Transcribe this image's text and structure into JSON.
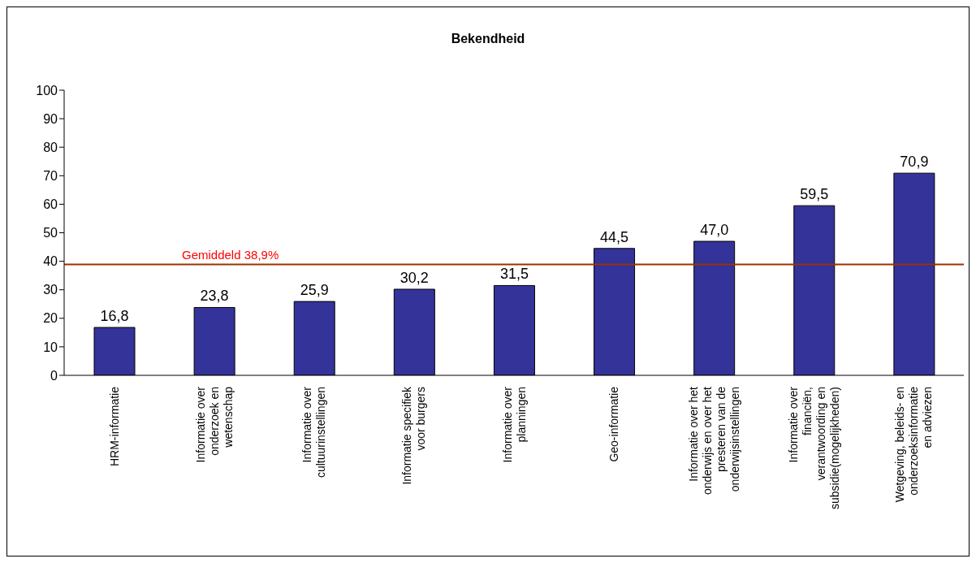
{
  "chart_data": {
    "type": "bar",
    "title": "Bekendheid",
    "categories": [
      "HRM-informatie",
      "Informatie over onderzoek en wetenschap",
      "Informatie over cultuurinstellingen",
      "Informatie specifiek voor burgers",
      "Informatie over planningen",
      "Geo-informatie",
      "Informatie over het onderwijs en over het presteren van de onderwijsinstellingen",
      "Informatie over financiën, verantwoording en subsidie(mogelijkheden)",
      "Wetgeving, beleids- en onderzoeksinformatie en adviezen"
    ],
    "values": [
      16.8,
      23.8,
      25.9,
      30.2,
      31.5,
      44.5,
      47.0,
      59.5,
      70.9
    ],
    "value_labels": [
      "16,8",
      "23,8",
      "25,9",
      "30,2",
      "31,5",
      "44,5",
      "47,0",
      "59,5",
      "70,9"
    ],
    "color": "#333399",
    "ylim": [
      0,
      100
    ],
    "yticks": [
      0,
      10,
      20,
      30,
      40,
      50,
      60,
      70,
      80,
      90,
      100
    ],
    "ref_lines": [
      {
        "axis": "y",
        "value": 38.9,
        "label": "Gemiddeld 38,9%",
        "color": "#993300"
      }
    ],
    "grid": false
  }
}
